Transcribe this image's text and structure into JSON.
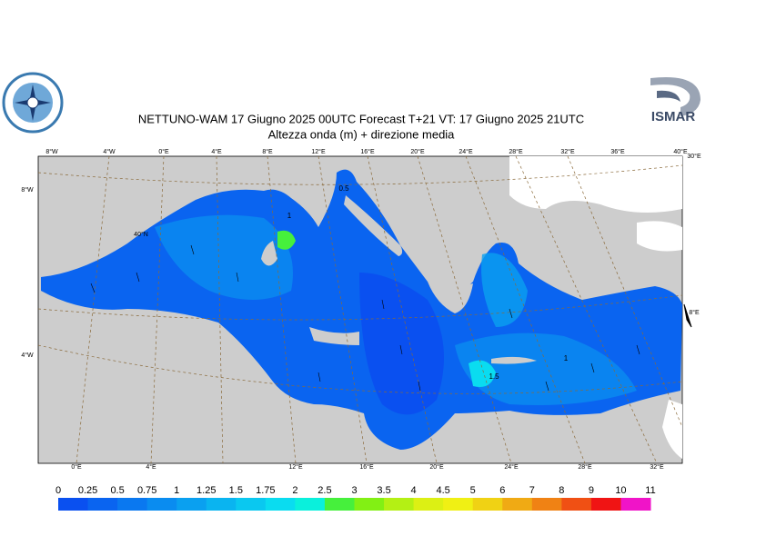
{
  "header": {
    "title": "NETTUNO-WAM  17   Giugno  2025 00UTC Forecast T+21 VT: 17   Giugno  2025 21UTC",
    "subtitle": "Altezza onda (m) + direzione media",
    "logo_text": "ISMAR"
  },
  "map": {
    "top_labels": [
      "8°W",
      "4°W",
      "0°E",
      "4°E",
      "8°E",
      "12°E",
      "16°E",
      "20°E",
      "24°E",
      "28°E",
      "32°E",
      "36°E",
      "40°E"
    ],
    "bottom_labels": [
      "0°E",
      "4°E",
      "12°E",
      "16°E",
      "20°E",
      "24°E",
      "28°E",
      "32°E"
    ],
    "left_labels": [
      "8°W",
      "4°W"
    ],
    "inner_labels": [
      "40°N"
    ],
    "right_labels": [
      "30°E",
      "8°E"
    ],
    "contour_labels": [
      "1",
      "0.5",
      "1.5",
      "1"
    ]
  },
  "legend": {
    "labels": [
      0,
      0.25,
      0.5,
      0.75,
      1,
      1.25,
      1.5,
      1.75,
      2,
      2.5,
      3,
      3.5,
      4,
      4.5,
      5,
      6,
      7,
      8,
      9,
      10,
      11
    ],
    "colors": [
      "#0a50f0",
      "#0a64f0",
      "#0a78f0",
      "#0a8cf0",
      "#0aa0f0",
      "#0ab4f0",
      "#0ac8f0",
      "#0adcf0",
      "#0af0dc",
      "#46f03c",
      "#82f014",
      "#b4f014",
      "#dcf014",
      "#f0f014",
      "#f0d214",
      "#f0aa14",
      "#f08214",
      "#f05014",
      "#f01414",
      "#f014c8"
    ]
  }
}
